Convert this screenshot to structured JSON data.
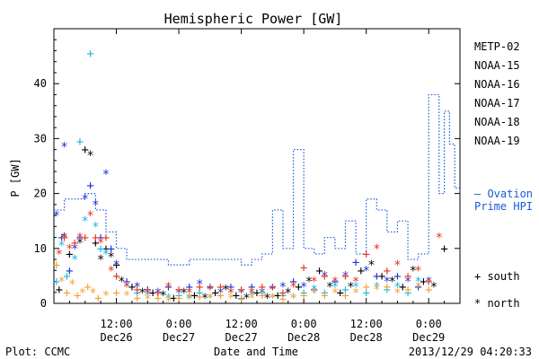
{
  "chart_data": {
    "type": "scatter",
    "title": "Hemispheric Power [GW]",
    "xlabel": "Date and Time",
    "ylabel": "P [GW]",
    "ylim": [
      0,
      50
    ],
    "y_ticks": [
      0,
      10,
      20,
      30,
      40
    ],
    "x_range_hours": [
      0,
      78
    ],
    "x_ticks": [
      {
        "h": 12,
        "time": "12:00",
        "date": "Dec26"
      },
      {
        "h": 24,
        "time": "0:00",
        "date": "Dec27"
      },
      {
        "h": 36,
        "time": "12:00",
        "date": "Dec27"
      },
      {
        "h": 48,
        "time": "0:00",
        "date": "Dec28"
      },
      {
        "h": 60,
        "time": "12:00",
        "date": "Dec28"
      },
      {
        "h": 72,
        "time": "0:00",
        "date": "Dec29"
      }
    ],
    "legend_position": "right",
    "series": [
      {
        "name": "METP-02",
        "color": "#000000",
        "points": [
          [
            1,
            2.5
          ],
          [
            2,
            12
          ],
          [
            3,
            9
          ],
          [
            5,
            11
          ],
          [
            6,
            28
          ],
          [
            7,
            27
          ],
          [
            8,
            11
          ],
          [
            9,
            8
          ],
          [
            10,
            10
          ],
          [
            11,
            8.5
          ],
          [
            12,
            7
          ],
          [
            13,
            4
          ],
          [
            15,
            3
          ],
          [
            17,
            2
          ],
          [
            19,
            2
          ],
          [
            21,
            1.5
          ],
          [
            23,
            1
          ],
          [
            25,
            2
          ],
          [
            27,
            1.5
          ],
          [
            29,
            1
          ],
          [
            31,
            2
          ],
          [
            33,
            2.5
          ],
          [
            35,
            1.5
          ],
          [
            37,
            1
          ],
          [
            39,
            2
          ],
          [
            41,
            1
          ],
          [
            43,
            1.5
          ],
          [
            45,
            2
          ],
          [
            47,
            3
          ],
          [
            49,
            4
          ],
          [
            51,
            6
          ],
          [
            53,
            3
          ],
          [
            55,
            2
          ],
          [
            57,
            3
          ],
          [
            59,
            6
          ],
          [
            61,
            7
          ],
          [
            63,
            5
          ],
          [
            65,
            4
          ],
          [
            67,
            3
          ],
          [
            69,
            6
          ],
          [
            71,
            4
          ],
          [
            73,
            3
          ],
          [
            75,
            10
          ]
        ]
      },
      {
        "name": "NOAA-15",
        "color": "#1a2ed8",
        "points": [
          [
            0.5,
            16
          ],
          [
            1.5,
            12
          ],
          [
            2,
            28.5
          ],
          [
            3,
            6
          ],
          [
            4,
            10
          ],
          [
            5,
            12
          ],
          [
            6,
            19
          ],
          [
            7,
            21.5
          ],
          [
            8,
            18
          ],
          [
            9,
            12
          ],
          [
            10,
            23.5
          ],
          [
            11,
            10
          ],
          [
            12,
            7
          ],
          [
            14,
            4
          ],
          [
            16,
            3
          ],
          [
            18,
            2.5
          ],
          [
            20,
            2
          ],
          [
            22,
            3
          ],
          [
            24,
            2
          ],
          [
            26,
            3
          ],
          [
            28,
            3.5
          ],
          [
            30,
            3
          ],
          [
            32,
            2
          ],
          [
            34,
            3
          ],
          [
            36,
            2
          ],
          [
            38,
            3
          ],
          [
            40,
            2
          ],
          [
            42,
            3
          ],
          [
            44,
            3
          ],
          [
            46,
            4
          ],
          [
            48,
            3
          ],
          [
            50,
            2.5
          ],
          [
            52,
            5
          ],
          [
            54,
            4
          ],
          [
            56,
            5
          ],
          [
            58,
            7.5
          ],
          [
            60,
            6
          ],
          [
            62,
            5
          ],
          [
            64,
            4
          ],
          [
            66,
            5
          ],
          [
            68,
            4
          ],
          [
            70,
            3
          ],
          [
            72,
            4
          ]
        ]
      },
      {
        "name": "NOAA-16",
        "color": "#1ab8e0",
        "points": [
          [
            0.5,
            4
          ],
          [
            1.5,
            10.5
          ],
          [
            2.5,
            5
          ],
          [
            4,
            8
          ],
          [
            5,
            29.5
          ],
          [
            6,
            15
          ],
          [
            7,
            45.5
          ],
          [
            8,
            14
          ],
          [
            9,
            10
          ],
          [
            10,
            9
          ],
          [
            12,
            5
          ],
          [
            14,
            3
          ],
          [
            16,
            2
          ],
          [
            18,
            1.5
          ],
          [
            20,
            2
          ],
          [
            22,
            1
          ],
          [
            24,
            1.5
          ],
          [
            26,
            1
          ],
          [
            28,
            2
          ],
          [
            30,
            1
          ],
          [
            32,
            1.5
          ],
          [
            34,
            2
          ],
          [
            36,
            1
          ],
          [
            38,
            1.5
          ],
          [
            40,
            2
          ],
          [
            42,
            1
          ],
          [
            44,
            1.5
          ],
          [
            46,
            1
          ],
          [
            48,
            2
          ],
          [
            50,
            2.5
          ],
          [
            52,
            2
          ],
          [
            54,
            3
          ],
          [
            56,
            2.5
          ],
          [
            58,
            3
          ],
          [
            60,
            2
          ],
          [
            62,
            3
          ],
          [
            64,
            2.5
          ],
          [
            66,
            3
          ],
          [
            68,
            2
          ],
          [
            70,
            4
          ]
        ]
      },
      {
        "name": "NOAA-17",
        "color": "#2cc85a",
        "points": []
      },
      {
        "name": "NOAA-18",
        "color": "#f4a033",
        "points": [
          [
            0.5,
            7
          ],
          [
            1.5,
            4
          ],
          [
            2.5,
            2
          ],
          [
            3.5,
            3.5
          ],
          [
            4.5,
            1.5
          ],
          [
            5.5,
            2
          ],
          [
            6.5,
            3
          ],
          [
            7.5,
            2
          ],
          [
            8.5,
            1
          ],
          [
            10,
            1.5
          ],
          [
            12,
            2
          ],
          [
            14,
            1.5
          ],
          [
            16,
            1
          ],
          [
            18,
            0.8
          ],
          [
            20,
            1
          ],
          [
            22,
            0.5
          ],
          [
            24,
            1
          ],
          [
            26,
            0.8
          ],
          [
            28,
            1.2
          ],
          [
            30,
            1
          ],
          [
            32,
            1.5
          ],
          [
            34,
            1
          ],
          [
            36,
            0.8
          ],
          [
            38,
            1
          ],
          [
            40,
            1.5
          ],
          [
            42,
            1
          ],
          [
            44,
            0.8
          ],
          [
            46,
            1
          ],
          [
            48,
            1.5
          ],
          [
            50,
            2
          ],
          [
            52,
            1.5
          ],
          [
            54,
            2
          ],
          [
            56,
            1.5
          ],
          [
            58,
            2
          ],
          [
            60,
            3
          ],
          [
            62,
            2.5
          ],
          [
            64,
            3
          ],
          [
            66,
            2
          ],
          [
            68,
            2.5
          ],
          [
            70,
            3
          ],
          [
            72,
            2.5
          ]
        ]
      },
      {
        "name": "NOAA-19",
        "color": "#e8321e",
        "points": [
          [
            1,
            9
          ],
          [
            2,
            12
          ],
          [
            3,
            10
          ],
          [
            4,
            11
          ],
          [
            5,
            12
          ],
          [
            6,
            12
          ],
          [
            7,
            16
          ],
          [
            8,
            12
          ],
          [
            9,
            11
          ],
          [
            10,
            12
          ],
          [
            11,
            6
          ],
          [
            12,
            5
          ],
          [
            14,
            3
          ],
          [
            16,
            2.5
          ],
          [
            18,
            2
          ],
          [
            20,
            2
          ],
          [
            22,
            3
          ],
          [
            24,
            2.5
          ],
          [
            26,
            2
          ],
          [
            28,
            3
          ],
          [
            30,
            2.5
          ],
          [
            32,
            3
          ],
          [
            34,
            2
          ],
          [
            36,
            2.5
          ],
          [
            38,
            2
          ],
          [
            40,
            3
          ],
          [
            42,
            2.5
          ],
          [
            44,
            2
          ],
          [
            46,
            3
          ],
          [
            48,
            6.5
          ],
          [
            50,
            4
          ],
          [
            52,
            5
          ],
          [
            54,
            4
          ],
          [
            56,
            5
          ],
          [
            58,
            4
          ],
          [
            60,
            9
          ],
          [
            62,
            10
          ],
          [
            64,
            6
          ],
          [
            66,
            7
          ],
          [
            68,
            5
          ],
          [
            70,
            6
          ],
          [
            72,
            4
          ],
          [
            74,
            12
          ]
        ]
      }
    ],
    "ovation_prime_hpi": {
      "label_line1": "Ovation",
      "label_line2": "Prime HPI",
      "dash": "—",
      "color": "#1a5ad8",
      "points": [
        [
          0,
          17
        ],
        [
          2,
          19
        ],
        [
          4,
          19
        ],
        [
          6,
          20
        ],
        [
          8,
          17
        ],
        [
          10,
          13
        ],
        [
          12,
          10
        ],
        [
          14,
          8
        ],
        [
          18,
          8
        ],
        [
          22,
          7
        ],
        [
          26,
          8
        ],
        [
          30,
          8
        ],
        [
          34,
          8
        ],
        [
          36,
          7
        ],
        [
          38,
          8
        ],
        [
          40,
          9
        ],
        [
          42,
          17
        ],
        [
          44,
          10
        ],
        [
          46,
          28
        ],
        [
          48,
          10
        ],
        [
          50,
          9
        ],
        [
          52,
          12
        ],
        [
          54,
          10
        ],
        [
          56,
          15
        ],
        [
          58,
          9
        ],
        [
          60,
          19
        ],
        [
          62,
          17
        ],
        [
          64,
          13
        ],
        [
          66,
          15
        ],
        [
          68,
          8
        ],
        [
          70,
          9
        ],
        [
          72,
          38
        ],
        [
          74,
          20
        ],
        [
          75,
          35
        ],
        [
          76,
          29
        ],
        [
          77,
          21
        ],
        [
          78,
          20
        ]
      ]
    },
    "symbol_key": [
      {
        "symbol": "+",
        "label": "south"
      },
      {
        "symbol": "*",
        "label": "north"
      }
    ]
  },
  "footer": {
    "left": "Plot: CCMC",
    "right": "2013/12/29 04:20:33"
  }
}
